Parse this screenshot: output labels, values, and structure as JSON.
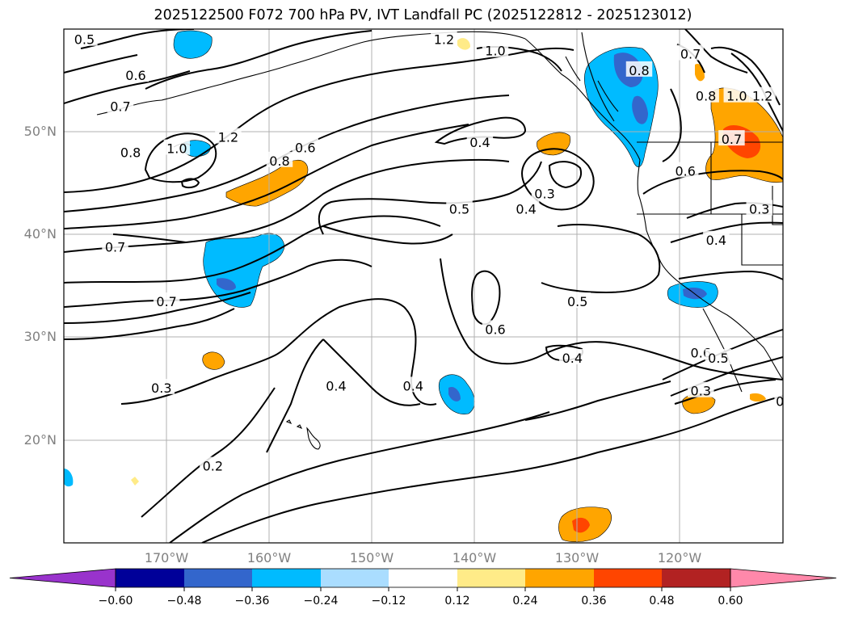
{
  "title": "2025122500 F072 700 hPa PV, IVT Landfall PC (2025122812 - 2025123012)",
  "axes": {
    "lat_ticks": [
      {
        "value": 50,
        "label": "50°N"
      },
      {
        "value": 40,
        "label": "40°N"
      },
      {
        "value": 30,
        "label": "30°N"
      },
      {
        "value": 20,
        "label": "20°N"
      }
    ],
    "lon_ticks": [
      {
        "value": -170,
        "label": "170°W"
      },
      {
        "value": -160,
        "label": "160°W"
      },
      {
        "value": -150,
        "label": "150°W"
      },
      {
        "value": -140,
        "label": "140°W"
      },
      {
        "value": -130,
        "label": "130°W"
      },
      {
        "value": -120,
        "label": "120°W"
      }
    ],
    "lon_range": [
      -180,
      -110
    ],
    "lat_range": [
      10,
      60
    ]
  },
  "colorbar": {
    "ticks": [
      "−0.60",
      "−0.48",
      "−0.36",
      "−0.24",
      "−0.12",
      "0.12",
      "0.24",
      "0.36",
      "0.48",
      "0.60"
    ],
    "colors": [
      "#9933cc",
      "#000099",
      "#3366cc",
      "#00bbff",
      "#aaddff",
      "#ffffff",
      "#ffeb88",
      "#ffa500",
      "#ff4500",
      "#b22222",
      "#ff88aa"
    ]
  },
  "contour_labels": [
    {
      "text": "0.5",
      "lon": -178,
      "lat": 59
    },
    {
      "text": "0.6",
      "lon": -173,
      "lat": 55.5
    },
    {
      "text": "0.7",
      "lon": -174.5,
      "lat": 52.5
    },
    {
      "text": "0.8",
      "lon": -173.5,
      "lat": 48
    },
    {
      "text": "1.0",
      "lon": -169,
      "lat": 48.4
    },
    {
      "text": "1.2",
      "lon": -164,
      "lat": 49.5
    },
    {
      "text": "0.8",
      "lon": -159,
      "lat": 47.2
    },
    {
      "text": "0.6",
      "lon": -156.5,
      "lat": 48.5
    },
    {
      "text": "1.2",
      "lon": -143,
      "lat": 59
    },
    {
      "text": "1.0",
      "lon": -138,
      "lat": 57.9
    },
    {
      "text": "0.8",
      "lon": -124,
      "lat": 56
    },
    {
      "text": "0.7",
      "lon": -119,
      "lat": 57.6
    },
    {
      "text": "0.8",
      "lon": -117.5,
      "lat": 53.5
    },
    {
      "text": "1.0",
      "lon": -114.5,
      "lat": 53.5
    },
    {
      "text": "1.2",
      "lon": -112,
      "lat": 53.5
    },
    {
      "text": "0.4",
      "lon": -139.5,
      "lat": 49
    },
    {
      "text": "0.3",
      "lon": -133.2,
      "lat": 44
    },
    {
      "text": "0.4",
      "lon": -135,
      "lat": 42.5
    },
    {
      "text": "0.5",
      "lon": -141.5,
      "lat": 42.5
    },
    {
      "text": "0.7",
      "lon": -115,
      "lat": 49.3
    },
    {
      "text": "0.6",
      "lon": -119.5,
      "lat": 46.2
    },
    {
      "text": "0.3",
      "lon": -112.3,
      "lat": 42.5
    },
    {
      "text": "0.4",
      "lon": -116.5,
      "lat": 39.5
    },
    {
      "text": "0.7",
      "lon": -175,
      "lat": 38.8
    },
    {
      "text": "0.7",
      "lon": -170,
      "lat": 33.5
    },
    {
      "text": "0.5",
      "lon": -130,
      "lat": 33.5
    },
    {
      "text": "0.6",
      "lon": -138,
      "lat": 30.8
    },
    {
      "text": "0.4",
      "lon": -130.5,
      "lat": 28
    },
    {
      "text": "0.6",
      "lon": -118,
      "lat": 28.5
    },
    {
      "text": "0.5",
      "lon": -116.3,
      "lat": 28
    },
    {
      "text": "0.3",
      "lon": -170.5,
      "lat": 25.1
    },
    {
      "text": "0.4",
      "lon": -153.5,
      "lat": 25.3
    },
    {
      "text": "0.4",
      "lon": -146,
      "lat": 25.3
    },
    {
      "text": "0.3",
      "lon": -118,
      "lat": 24.8
    },
    {
      "text": "0",
      "lon": -110.3,
      "lat": 23.8
    },
    {
      "text": "0.2",
      "lon": -165.5,
      "lat": 17.5
    }
  ],
  "contour_line_color": "#000000",
  "grid_color": "#b0b0b0"
}
